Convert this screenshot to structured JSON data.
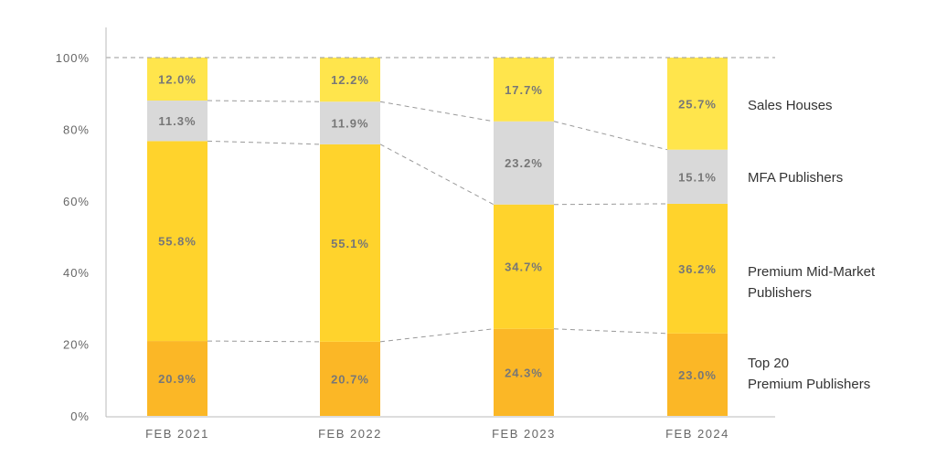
{
  "chart_data": {
    "type": "bar",
    "stacked": true,
    "categories": [
      "FEB 2021",
      "FEB 2022",
      "FEB 2023",
      "FEB 2024"
    ],
    "ylim": [
      0,
      100
    ],
    "yticks": [
      "0%",
      "20%",
      "40%",
      "60%",
      "80%",
      "100%"
    ],
    "grid": false,
    "legend": "right",
    "series": [
      {
        "name": "Top 20 Premium Publishers",
        "values": [
          20.9,
          20.7,
          24.3,
          23.0
        ],
        "labels": [
          "20.9%",
          "20.7%",
          "24.3%",
          "23.0%"
        ],
        "color": "#fbb726"
      },
      {
        "name": "Premium Mid-Market Publishers",
        "values": [
          55.8,
          55.1,
          34.7,
          36.2
        ],
        "labels": [
          "55.8%",
          "55.1%",
          "34.7%",
          "36.2%"
        ],
        "color": "#ffd32c"
      },
      {
        "name": "MFA Publishers",
        "values": [
          11.3,
          11.9,
          23.2,
          15.1
        ],
        "labels": [
          "11.3%",
          "11.9%",
          "23.2%",
          "15.1%"
        ],
        "color": "#d9d9d9"
      },
      {
        "name": "Sales Houses",
        "values": [
          12.0,
          12.2,
          17.7,
          25.7
        ],
        "labels": [
          "12.0%",
          "12.2%",
          "17.7%",
          "25.7%"
        ],
        "color": "#ffe54c"
      }
    ],
    "legend_labels": [
      {
        "lines": [
          "Sales Houses"
        ]
      },
      {
        "lines": [
          "MFA Publishers"
        ]
      },
      {
        "lines": [
          "Premium Mid-Market",
          "Publishers"
        ]
      },
      {
        "lines": [
          "Top 20",
          "Premium Publishers"
        ]
      }
    ]
  }
}
